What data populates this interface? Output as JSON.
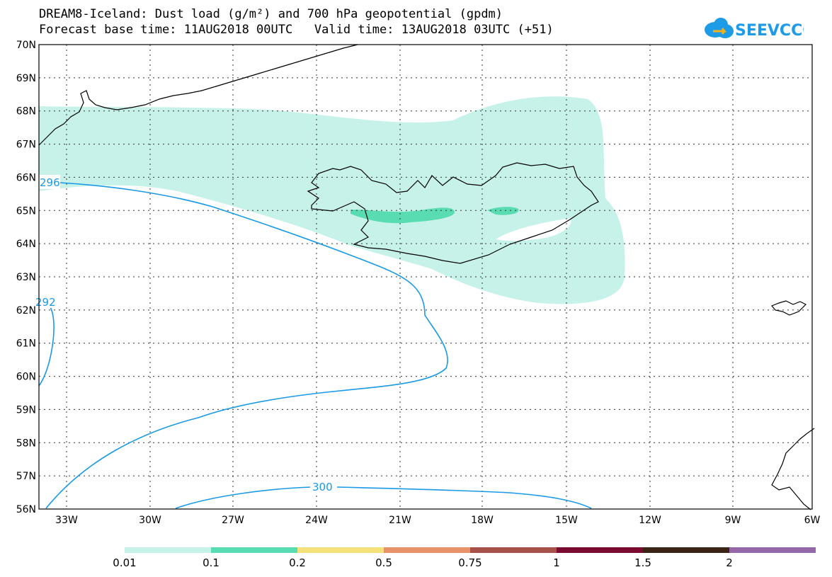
{
  "header": {
    "title_line1": "DREAM8-Iceland: Dust load (g/m²) and 700 hPa geopotential (gpdm)",
    "title_line2": "Forecast base time: 11AUG2018 00UTC   Valid time: 13AUG2018 03UTC (+51)",
    "logo_text": "SEEVCCC",
    "logo_color": "#1e9be6"
  },
  "map": {
    "lat_labels": [
      "70N",
      "69N",
      "68N",
      "67N",
      "66N",
      "65N",
      "64N",
      "63N",
      "62N",
      "61N",
      "60N",
      "59N",
      "58N",
      "57N",
      "56N"
    ],
    "lon_labels": [
      "33W",
      "30W",
      "27W",
      "24W",
      "21W",
      "18W",
      "15W",
      "12W",
      "9W",
      "6W"
    ],
    "contour_labels": [
      "296",
      "292",
      "300"
    ],
    "contour_color": "#1a9ae6",
    "dust_colors": {
      "low": "#c6f2ea",
      "mid": "#59dcb1"
    }
  },
  "colorbar": {
    "labels": [
      "0.01",
      "0.1",
      "0.2",
      "0.5",
      "0.75",
      "1",
      "1.5",
      "2"
    ],
    "colors": [
      "#c6f2ea",
      "#59dcb1",
      "#f5e17a",
      "#e8926a",
      "#a8504a",
      "#7a0a30",
      "#3b2316",
      "#9467a8"
    ]
  }
}
